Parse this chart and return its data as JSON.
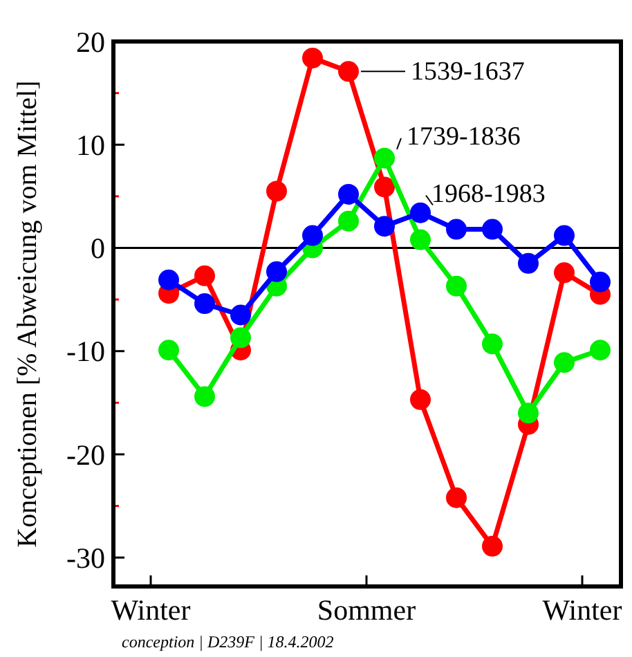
{
  "chart_data": {
    "type": "line",
    "ylabel": "Konceptionen [% Abweicung vom Mittel]",
    "categories": [
      null,
      null,
      null,
      null,
      null,
      null,
      null,
      null,
      null,
      null,
      null,
      null,
      null
    ],
    "ylim": [
      -32.8,
      20
    ],
    "yticks": [
      20,
      {
        "value": 15,
        "label": null
      },
      10,
      {
        "value": 5,
        "label": null
      },
      0,
      {
        "value": -5,
        "label": null
      },
      -10,
      {
        "value": -15,
        "label": null
      },
      -20,
      {
        "value": -25,
        "label": null
      },
      -30
    ],
    "marker": "circle",
    "line_style": "solid",
    "grid": false,
    "ref_lines": [
      {
        "axis": "y",
        "value": 0,
        "color": "#000000"
      }
    ],
    "series": [
      {
        "name": "1539-1637",
        "color": "#ff0000",
        "values": [
          -4.4,
          -2.7,
          -9.9,
          5.5,
          18.4,
          17.1,
          5.9,
          -14.7,
          -24.2,
          -28.9,
          -17.1,
          -2.4,
          -4.5
        ]
      },
      {
        "name": "1739-1836",
        "color": "#00ee00",
        "values": [
          -9.9,
          -14.4,
          -8.7,
          -3.7,
          0.0,
          2.6,
          8.7,
          0.8,
          -3.7,
          -9.3,
          -16.0,
          -11.1,
          -9.9
        ]
      },
      {
        "name": "1968-1983",
        "color": "#0000ff",
        "values": [
          -3.1,
          -5.4,
          -6.5,
          -2.3,
          1.2,
          5.2,
          2.1,
          3.4,
          1.8,
          1.8,
          -1.5,
          1.2,
          -3.3
        ]
      }
    ],
    "annotations": [
      "Winter",
      "Sommer",
      "Winter",
      "conception | D239F | 18.4.2002"
    ]
  }
}
